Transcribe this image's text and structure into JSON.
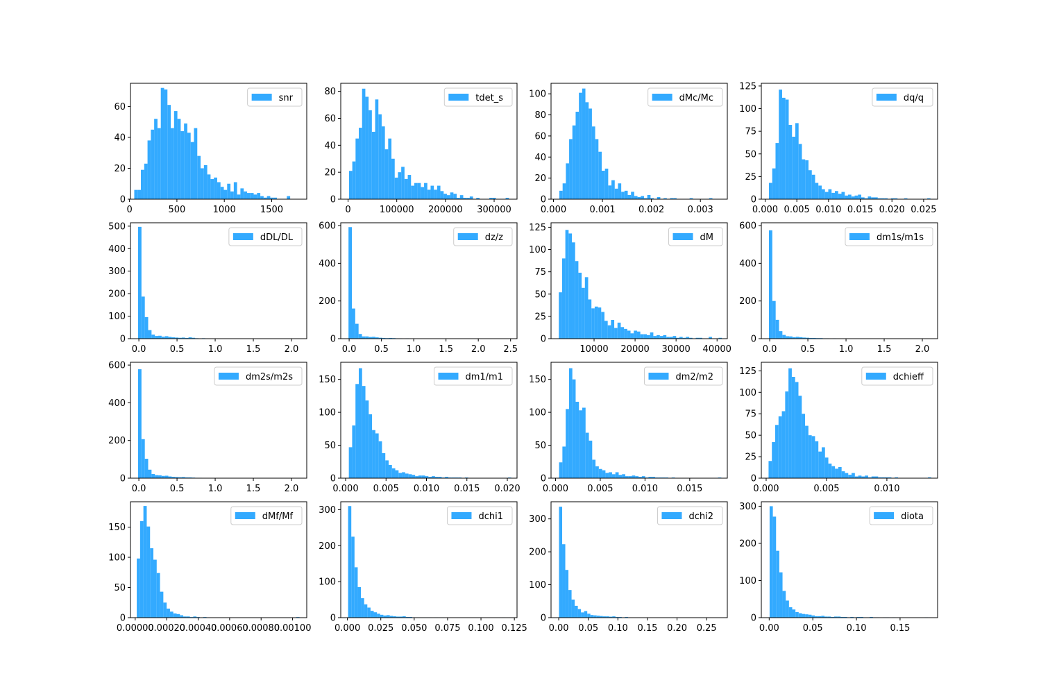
{
  "figure": {
    "bar_color": "#33aaff",
    "axis_color": "#000000",
    "legend_edge_color": "#cccccc",
    "legend_placement": "top-right",
    "rows": 4,
    "cols": 4
  },
  "chart_data": [
    {
      "type": "bar",
      "label": "snr",
      "legend": "snr",
      "xlim": [
        10,
        1870
      ],
      "ylim": [
        0,
        75
      ],
      "xticks": [
        0,
        500,
        1000,
        1500
      ],
      "xtick_labels": [
        "0",
        "500",
        "1000",
        "1500"
      ],
      "yticks": [
        0,
        20,
        40,
        60
      ],
      "ytick_labels": [
        "0",
        "20",
        "40",
        "60"
      ],
      "bin_start": 50,
      "bin_width": 35,
      "values": [
        6,
        6,
        19,
        23,
        38,
        45,
        52,
        46,
        72,
        71,
        61,
        46,
        57,
        52,
        44,
        49,
        43,
        37,
        46,
        28,
        20,
        22,
        16,
        13,
        14,
        11,
        8,
        6,
        10,
        5,
        11,
        3,
        7,
        5,
        4,
        4,
        3,
        4,
        2,
        1,
        2,
        1,
        1,
        0,
        0,
        0,
        2,
        0,
        0,
        0
      ]
    },
    {
      "type": "bar",
      "label": "tdet_s",
      "legend": "tdet_s",
      "xlim": [
        -15000,
        347000
      ],
      "ylim": [
        0,
        86
      ],
      "xticks": [
        0,
        100000,
        200000,
        300000
      ],
      "xtick_labels": [
        "0",
        "100000",
        "200000",
        "300000"
      ],
      "yticks": [
        0,
        20,
        40,
        60,
        80
      ],
      "ytick_labels": [
        "0",
        "20",
        "40",
        "60",
        "80"
      ],
      "bin_start": 2000,
      "bin_width": 6700,
      "values": [
        21,
        28,
        45,
        53,
        82,
        76,
        66,
        50,
        74,
        63,
        54,
        37,
        45,
        30,
        16,
        20,
        24,
        15,
        18,
        10,
        12,
        12,
        9,
        12,
        7,
        10,
        7,
        10,
        6,
        4,
        3,
        5,
        4,
        1,
        3,
        1,
        1,
        2,
        0,
        1,
        0,
        0,
        0,
        1,
        1,
        0,
        0,
        0,
        1,
        0
      ]
    },
    {
      "type": "bar",
      "label": "dMc/Mc",
      "legend": "dMc/Mc",
      "xlim": [
        -5e-05,
        0.00355
      ],
      "ylim": [
        0,
        110
      ],
      "xticks": [
        0,
        0.001,
        0.002,
        0.003
      ],
      "xtick_labels": [
        "0.000",
        "0.001",
        "0.002",
        "0.003"
      ],
      "yticks": [
        0,
        20,
        40,
        60,
        80,
        100
      ],
      "ytick_labels": [
        "0",
        "20",
        "40",
        "60",
        "80",
        "100"
      ],
      "bin_start": 0.00012,
      "bin_width": 6.65e-05,
      "values": [
        8,
        15,
        34,
        57,
        70,
        83,
        101,
        105,
        92,
        86,
        69,
        57,
        45,
        27,
        29,
        13,
        18,
        10,
        15,
        7,
        8,
        4,
        7,
        3,
        2,
        3,
        1,
        4,
        1,
        0,
        2,
        0,
        1,
        0,
        1,
        1,
        0,
        0,
        0,
        0,
        1,
        0,
        0,
        0,
        0,
        0,
        1,
        0,
        0,
        0
      ]
    },
    {
      "type": "bar",
      "label": "dq/q",
      "legend": "dq/q",
      "xlim": [
        -0.0006,
        0.0272
      ],
      "ylim": [
        0,
        128
      ],
      "xticks": [
        0,
        0.005,
        0.01,
        0.015,
        0.02,
        0.025
      ],
      "xtick_labels": [
        "0.000",
        "0.005",
        "0.010",
        "0.015",
        "0.020",
        "0.025"
      ],
      "yticks": [
        0,
        25,
        50,
        75,
        100,
        125
      ],
      "ytick_labels": [
        "0",
        "25",
        "50",
        "75",
        "100",
        "125"
      ],
      "bin_start": 0.0006,
      "bin_width": 0.00052,
      "values": [
        18,
        34,
        62,
        121,
        112,
        110,
        82,
        69,
        84,
        61,
        44,
        43,
        32,
        27,
        18,
        15,
        11,
        8,
        11,
        7,
        9,
        6,
        8,
        4,
        5,
        3,
        4,
        5,
        2,
        1,
        3,
        2,
        2,
        1,
        1,
        1,
        0,
        1,
        1,
        0,
        0,
        1,
        0,
        0,
        0,
        0,
        0,
        0,
        1,
        0
      ]
    },
    {
      "type": "bar",
      "label": "dDL/DL",
      "legend": "dDL/DL",
      "xlim": [
        -0.11,
        2.2
      ],
      "ylim": [
        0,
        515
      ],
      "xticks": [
        0,
        0.5,
        1,
        1.5,
        2
      ],
      "xtick_labels": [
        "0.0",
        "0.5",
        "1.0",
        "1.5",
        "2.0"
      ],
      "yticks": [
        0,
        100,
        200,
        300,
        400,
        500
      ],
      "ytick_labels": [
        "0",
        "100",
        "200",
        "300",
        "400",
        "500"
      ],
      "bin_start": -0.01,
      "bin_width": 0.044,
      "values": [
        497,
        187,
        96,
        38,
        18,
        12,
        13,
        9,
        11,
        8,
        6,
        5,
        4,
        5,
        3,
        6,
        4,
        2,
        1,
        2,
        1,
        1,
        0,
        1,
        0,
        1,
        0,
        0,
        1,
        0,
        0,
        0,
        0,
        0,
        0,
        0,
        0,
        0,
        0,
        0,
        0,
        0,
        0,
        0,
        0,
        0,
        0,
        0,
        0,
        0
      ]
    },
    {
      "type": "bar",
      "label": "dz/z",
      "legend": "dz/z",
      "xlim": [
        -0.13,
        2.6
      ],
      "ylim": [
        0,
        615
      ],
      "xticks": [
        0,
        0.5,
        1,
        1.5,
        2,
        2.5
      ],
      "xtick_labels": [
        "0.0",
        "0.5",
        "1.0",
        "1.5",
        "2.0",
        "2.5"
      ],
      "yticks": [
        0,
        200,
        400,
        600
      ],
      "ytick_labels": [
        "0",
        "200",
        "400",
        "600"
      ],
      "bin_start": -0.01,
      "bin_width": 0.052,
      "values": [
        592,
        160,
        79,
        25,
        12,
        12,
        9,
        10,
        7,
        5,
        4,
        3,
        4,
        3,
        2,
        2,
        1,
        2,
        1,
        1,
        1,
        0,
        0,
        1,
        0,
        0,
        0,
        0,
        0,
        0,
        0,
        0,
        1,
        0,
        0,
        0,
        0,
        0,
        0,
        0,
        0,
        0,
        0,
        0,
        0,
        0,
        0,
        0,
        0,
        0
      ]
    },
    {
      "type": "bar",
      "label": "dM",
      "legend": "dM",
      "xlim": [
        -500,
        42500
      ],
      "ylim": [
        0,
        130
      ],
      "xticks": [
        10000,
        20000,
        30000,
        40000
      ],
      "xtick_labels": [
        "10000",
        "20000",
        "30000",
        "40000"
      ],
      "yticks": [
        0,
        25,
        50,
        75,
        100,
        125
      ],
      "ytick_labels": [
        "0",
        "25",
        "50",
        "75",
        "100",
        "125"
      ],
      "bin_start": 1400,
      "bin_width": 795,
      "values": [
        52,
        90,
        122,
        118,
        108,
        87,
        74,
        57,
        69,
        44,
        34,
        36,
        35,
        30,
        20,
        15,
        21,
        12,
        18,
        13,
        11,
        9,
        6,
        9,
        8,
        5,
        5,
        4,
        7,
        3,
        4,
        3,
        4,
        2,
        2,
        3,
        1,
        2,
        1,
        2,
        1,
        0,
        1,
        1,
        0,
        0,
        2,
        0,
        0,
        1
      ]
    },
    {
      "type": "bar",
      "label": "dm1s/m1s",
      "legend": "dm1s/m1s",
      "xlim": [
        -0.11,
        2.2
      ],
      "ylim": [
        0,
        615
      ],
      "xticks": [
        0,
        0.5,
        1,
        1.5,
        2
      ],
      "xtick_labels": [
        "0.0",
        "0.5",
        "1.0",
        "1.5",
        "2.0"
      ],
      "yticks": [
        0,
        200,
        400,
        600
      ],
      "ytick_labels": [
        "0",
        "200",
        "400",
        "600"
      ],
      "bin_start": -0.01,
      "bin_width": 0.044,
      "values": [
        575,
        200,
        100,
        40,
        20,
        13,
        12,
        8,
        10,
        8,
        6,
        5,
        4,
        4,
        3,
        3,
        2,
        2,
        1,
        2,
        1,
        1,
        0,
        1,
        0,
        1,
        0,
        0,
        0,
        0,
        0,
        0,
        0,
        0,
        0,
        0,
        0,
        0,
        0,
        0,
        0,
        0,
        0,
        0,
        0,
        0,
        0,
        0,
        0,
        0
      ]
    },
    {
      "type": "bar",
      "label": "dm2s/m2s",
      "legend": "dm2s/m2s",
      "xlim": [
        -0.11,
        2.2
      ],
      "ylim": [
        0,
        615
      ],
      "xticks": [
        0,
        0.5,
        1,
        1.5,
        2
      ],
      "xtick_labels": [
        "0.0",
        "0.5",
        "1.0",
        "1.5",
        "2.0"
      ],
      "yticks": [
        0,
        200,
        400,
        600
      ],
      "ytick_labels": [
        "0",
        "200",
        "400",
        "600"
      ],
      "bin_start": -0.01,
      "bin_width": 0.044,
      "values": [
        578,
        207,
        103,
        45,
        22,
        16,
        15,
        12,
        13,
        9,
        7,
        6,
        5,
        6,
        4,
        4,
        3,
        2,
        2,
        1,
        1,
        1,
        1,
        1,
        0,
        1,
        0,
        0,
        1,
        0,
        0,
        0,
        0,
        0,
        0,
        0,
        0,
        0,
        0,
        0,
        0,
        0,
        0,
        0,
        0,
        0,
        0,
        0,
        0,
        0
      ]
    },
    {
      "type": "bar",
      "label": "dm1/m1",
      "legend": "dm1/m1",
      "xlim": [
        -0.0006,
        0.0212
      ],
      "ylim": [
        0,
        176
      ],
      "xticks": [
        0,
        0.005,
        0.01,
        0.015,
        0.02
      ],
      "xtick_labels": [
        "0.000",
        "0.005",
        "0.010",
        "0.015",
        "0.020"
      ],
      "yticks": [
        0,
        50,
        100,
        150
      ],
      "ytick_labels": [
        "0",
        "50",
        "100",
        "150"
      ],
      "bin_start": 0.0004,
      "bin_width": 0.00041,
      "values": [
        47,
        80,
        143,
        167,
        140,
        118,
        97,
        73,
        68,
        56,
        38,
        27,
        20,
        15,
        12,
        8,
        9,
        7,
        6,
        5,
        3,
        4,
        4,
        3,
        2,
        3,
        2,
        2,
        1,
        2,
        1,
        1,
        1,
        1,
        0,
        1,
        0,
        0,
        0,
        0,
        0,
        0,
        0,
        0,
        0,
        0,
        0,
        0,
        1,
        0
      ]
    },
    {
      "type": "bar",
      "label": "dm2/m2",
      "legend": "dm2/m2",
      "xlim": [
        -0.0005,
        0.0192
      ],
      "ylim": [
        0,
        176
      ],
      "xticks": [
        0,
        0.005,
        0.01,
        0.015
      ],
      "xtick_labels": [
        "0.000",
        "0.005",
        "0.010",
        "0.015"
      ],
      "yticks": [
        0,
        50,
        100,
        150
      ],
      "ytick_labels": [
        "0",
        "50",
        "100",
        "150"
      ],
      "bin_start": 0.0004,
      "bin_width": 0.00037,
      "values": [
        24,
        48,
        105,
        167,
        150,
        116,
        103,
        107,
        69,
        57,
        28,
        18,
        14,
        12,
        8,
        9,
        6,
        9,
        5,
        6,
        3,
        3,
        4,
        3,
        2,
        3,
        1,
        2,
        2,
        1,
        1,
        1,
        1,
        0,
        1,
        0,
        0,
        0,
        0,
        0,
        0,
        0,
        0,
        0,
        0,
        0,
        0,
        0,
        1,
        0
      ]
    },
    {
      "type": "bar",
      "label": "dchieff",
      "legend": "dchieff",
      "xlim": [
        -0.0004,
        0.0142
      ],
      "ylim": [
        0,
        135
      ],
      "xticks": [
        0,
        0.005,
        0.01
      ],
      "xtick_labels": [
        "0.000",
        "0.005",
        "0.010"
      ],
      "yticks": [
        0,
        25,
        50,
        75,
        100,
        125
      ],
      "ytick_labels": [
        "0",
        "25",
        "50",
        "75",
        "100",
        "125"
      ],
      "bin_start": 0.0002,
      "bin_width": 0.000275,
      "values": [
        20,
        42,
        62,
        72,
        78,
        101,
        128,
        118,
        112,
        96,
        75,
        61,
        50,
        49,
        43,
        31,
        36,
        24,
        17,
        14,
        11,
        13,
        8,
        6,
        4,
        6,
        2,
        3,
        2,
        3,
        1,
        2,
        2,
        1,
        1,
        1,
        1,
        0,
        1,
        0,
        0,
        0,
        0,
        0,
        0,
        0,
        0,
        0,
        1,
        0
      ]
    },
    {
      "type": "bar",
      "label": "dMf/Mf",
      "legend": "dMf/Mf",
      "xlim": [
        -3e-05,
        0.00109
      ],
      "ylim": [
        0,
        192
      ],
      "xticks": [
        0,
        0.0002,
        0.0004,
        0.0006,
        0.0008,
        0.001
      ],
      "xtick_labels": [
        "0.00000",
        "0.00020",
        "0.00040",
        "0.00060",
        "0.00080",
        "0.00100"
      ],
      "yticks": [
        0,
        50,
        100,
        150
      ],
      "ytick_labels": [
        "0",
        "50",
        "100",
        "150"
      ],
      "bin_start": 1e-05,
      "bin_width": 2.11e-05,
      "values": [
        98,
        160,
        185,
        151,
        115,
        96,
        74,
        43,
        25,
        15,
        10,
        7,
        6,
        4,
        2,
        2,
        1,
        2,
        1,
        0,
        1,
        0,
        0,
        0,
        0,
        0,
        0,
        0,
        0,
        0,
        0,
        0,
        0,
        0,
        0,
        0,
        0,
        0,
        0,
        0,
        0,
        0,
        0,
        0,
        0,
        0,
        0,
        0,
        1,
        0
      ]
    },
    {
      "type": "bar",
      "label": "dchi1",
      "legend": "dchi1",
      "xlim": [
        -0.005,
        0.127
      ],
      "ylim": [
        0,
        322
      ],
      "xticks": [
        0,
        0.025,
        0.05,
        0.075,
        0.1,
        0.125
      ],
      "xtick_labels": [
        "0.000",
        "0.025",
        "0.050",
        "0.075",
        "0.100",
        "0.125"
      ],
      "yticks": [
        0,
        100,
        200,
        300
      ],
      "ytick_labels": [
        "0",
        "100",
        "200",
        "300"
      ],
      "bin_start": 0.0005,
      "bin_width": 0.0024,
      "values": [
        310,
        225,
        140,
        85,
        54,
        37,
        28,
        19,
        15,
        11,
        8,
        6,
        7,
        5,
        4,
        3,
        3,
        4,
        2,
        2,
        1,
        1,
        1,
        1,
        1,
        1,
        0,
        1,
        0,
        1,
        0,
        0,
        0,
        0,
        0,
        0,
        0,
        0,
        0,
        0,
        0,
        0,
        0,
        0,
        0,
        0,
        0,
        0,
        1,
        0
      ]
    },
    {
      "type": "bar",
      "label": "dchi2",
      "legend": "dchi2",
      "xlim": [
        -0.013,
        0.285
      ],
      "ylim": [
        0,
        352
      ],
      "xticks": [
        0,
        0.05,
        0.1,
        0.15,
        0.2,
        0.25
      ],
      "xtick_labels": [
        "0.00",
        "0.05",
        "0.10",
        "0.15",
        "0.20",
        "0.25"
      ],
      "yticks": [
        0,
        100,
        200,
        300
      ],
      "ytick_labels": [
        "0",
        "100",
        "200",
        "300"
      ],
      "bin_start": 0.0005,
      "bin_width": 0.0053,
      "values": [
        337,
        223,
        145,
        84,
        55,
        36,
        26,
        16,
        20,
        12,
        8,
        7,
        6,
        5,
        4,
        4,
        3,
        4,
        2,
        2,
        1,
        2,
        1,
        1,
        1,
        1,
        0,
        1,
        1,
        1,
        0,
        1,
        0,
        0,
        0,
        0,
        0,
        0,
        1,
        0,
        0,
        0,
        0,
        0,
        0,
        0,
        0,
        0,
        0,
        0
      ]
    },
    {
      "type": "bar",
      "label": "diota",
      "legend": "diota",
      "xlim": [
        -0.009,
        0.193
      ],
      "ylim": [
        0,
        312
      ],
      "xticks": [
        0,
        0.05,
        0.1,
        0.15
      ],
      "xtick_labels": [
        "0.00",
        "0.05",
        "0.10",
        "0.15"
      ],
      "yticks": [
        0,
        100,
        200,
        300
      ],
      "ytick_labels": [
        "0",
        "100",
        "200",
        "300"
      ],
      "bin_start": 0.0005,
      "bin_width": 0.0037,
      "values": [
        300,
        272,
        180,
        122,
        72,
        46,
        28,
        22,
        15,
        12,
        10,
        9,
        8,
        6,
        4,
        4,
        5,
        3,
        3,
        2,
        3,
        3,
        2,
        2,
        1,
        2,
        1,
        2,
        2,
        1,
        1,
        2,
        1,
        1,
        0,
        1,
        1,
        0,
        1,
        0,
        0,
        0,
        0,
        0,
        0,
        0,
        0,
        0,
        1,
        0
      ]
    }
  ]
}
